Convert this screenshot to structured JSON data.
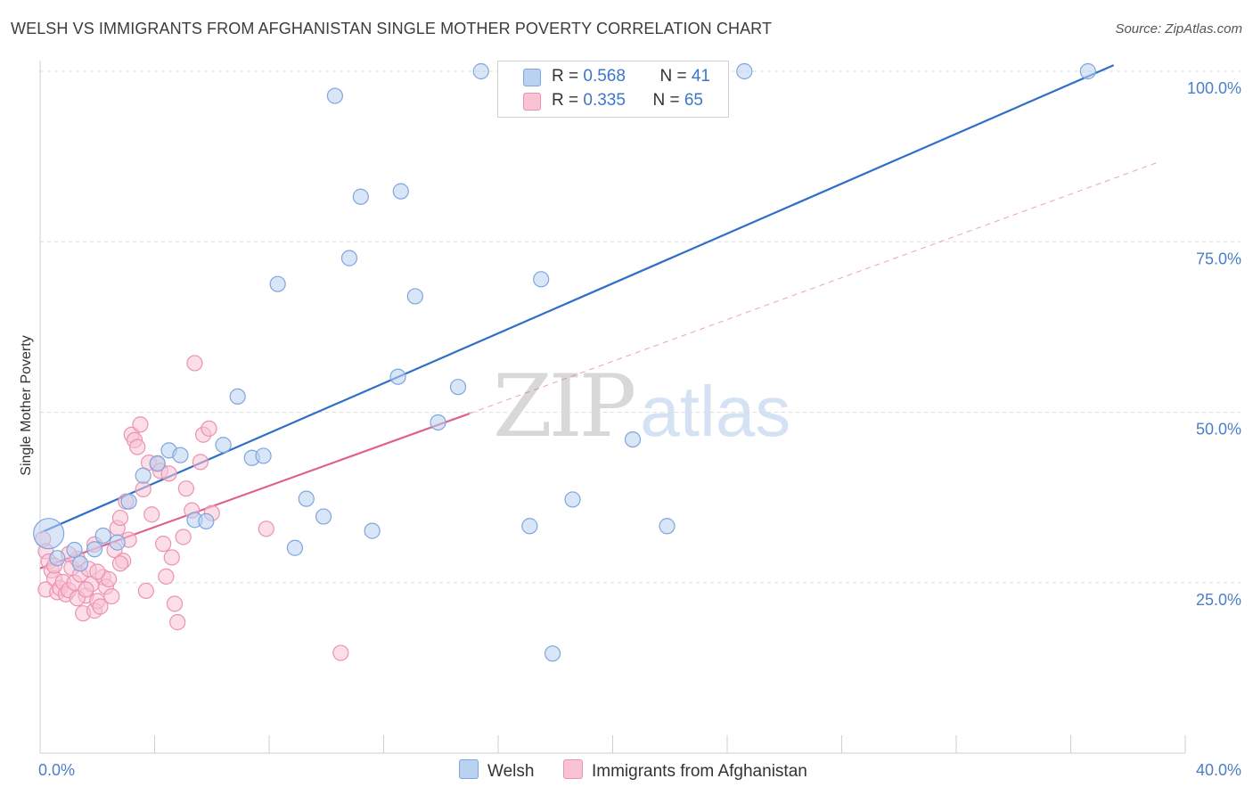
{
  "header": {
    "title": "WELSH VS IMMIGRANTS FROM AFGHANISTAN SINGLE MOTHER POVERTY CORRELATION CHART",
    "source": "Source: ZipAtlas.com"
  },
  "watermark": {
    "zip": "ZIP",
    "atlas": "atlas"
  },
  "legend_top": {
    "welsh": {
      "r_label": "R = ",
      "r_value": "0.568",
      "n_label": "N = ",
      "n_value": "41"
    },
    "afghan": {
      "r_label": "R = ",
      "r_value": "0.335",
      "n_label": "N = ",
      "n_value": "65"
    }
  },
  "legend_bottom": {
    "welsh": "Welsh",
    "afghan": "Immigrants from Afghanistan"
  },
  "colors": {
    "welsh_fill": "#b9d2f2",
    "welsh_stroke": "#7ea6dc",
    "welsh_line": "#2f6fc8",
    "afghan_fill": "#f8c3d4",
    "afghan_stroke": "#ec92b1",
    "afghan_line": "#e0608c",
    "tick_text": "#4a7fc9",
    "grid": "#dddddd"
  },
  "chart_data": {
    "type": "scatter",
    "title": "WELSH VS IMMIGRANTS FROM AFGHANISTAN SINGLE MOTHER POVERTY CORRELATION CHART",
    "xlabel": "",
    "ylabel": "Single Mother Poverty",
    "xlim": [
      0,
      40
    ],
    "ylim": [
      0,
      101
    ],
    "x_tick_labels": [
      {
        "value": 0,
        "label": "0.0%"
      },
      {
        "value": 40,
        "label": "40.0%"
      }
    ],
    "y_tick_labels": [
      {
        "value": 25,
        "label": "25.0%"
      },
      {
        "value": 50,
        "label": "50.0%"
      },
      {
        "value": 75,
        "label": "75.0%"
      },
      {
        "value": 100,
        "label": "100.0%"
      }
    ],
    "grid": true,
    "legend_placement": "top-center",
    "series": [
      {
        "name": "Welsh",
        "r": 0.568,
        "n": 41,
        "trend": {
          "x0": 0,
          "y0": 32.3,
          "x1": 37.5,
          "y1": 100.9,
          "dashed_to": null
        },
        "points": [
          {
            "x": 0.3,
            "y": 32.2,
            "big": true
          },
          {
            "x": 0.6,
            "y": 28.6
          },
          {
            "x": 1.2,
            "y": 29.8
          },
          {
            "x": 1.4,
            "y": 27.8
          },
          {
            "x": 1.9,
            "y": 29.9
          },
          {
            "x": 2.2,
            "y": 31.9
          },
          {
            "x": 2.7,
            "y": 30.9
          },
          {
            "x": 3.1,
            "y": 36.9
          },
          {
            "x": 3.6,
            "y": 40.7
          },
          {
            "x": 4.1,
            "y": 42.5
          },
          {
            "x": 4.5,
            "y": 44.4
          },
          {
            "x": 4.9,
            "y": 43.7
          },
          {
            "x": 5.4,
            "y": 34.2
          },
          {
            "x": 5.8,
            "y": 34.0
          },
          {
            "x": 6.4,
            "y": 45.2
          },
          {
            "x": 6.9,
            "y": 52.3
          },
          {
            "x": 7.4,
            "y": 43.3
          },
          {
            "x": 7.8,
            "y": 43.6
          },
          {
            "x": 8.3,
            "y": 68.8
          },
          {
            "x": 8.9,
            "y": 30.1
          },
          {
            "x": 9.3,
            "y": 37.3
          },
          {
            "x": 9.9,
            "y": 34.7
          },
          {
            "x": 10.3,
            "y": 96.4
          },
          {
            "x": 10.8,
            "y": 72.6
          },
          {
            "x": 11.2,
            "y": 81.6
          },
          {
            "x": 11.6,
            "y": 32.6
          },
          {
            "x": 12.5,
            "y": 55.2
          },
          {
            "x": 12.6,
            "y": 82.4
          },
          {
            "x": 13.1,
            "y": 67.0
          },
          {
            "x": 13.9,
            "y": 48.5
          },
          {
            "x": 14.6,
            "y": 53.7
          },
          {
            "x": 15.4,
            "y": 100.0
          },
          {
            "x": 17.1,
            "y": 33.3
          },
          {
            "x": 17.5,
            "y": 69.5
          },
          {
            "x": 17.9,
            "y": 14.6
          },
          {
            "x": 18.6,
            "y": 37.2
          },
          {
            "x": 19.8,
            "y": 100.0
          },
          {
            "x": 20.7,
            "y": 46.0
          },
          {
            "x": 21.9,
            "y": 33.3
          },
          {
            "x": 24.6,
            "y": 100.0
          },
          {
            "x": 36.6,
            "y": 100.0
          }
        ]
      },
      {
        "name": "Immigrants from Afghanistan",
        "r": 0.335,
        "n": 65,
        "trend": {
          "x0": 0,
          "y0": 27.1,
          "x1": 15.0,
          "y1": 49.8,
          "dashed_to": {
            "x": 40,
            "y": 87.7
          }
        },
        "points": [
          {
            "x": 0.1,
            "y": 31.4
          },
          {
            "x": 0.2,
            "y": 29.6
          },
          {
            "x": 0.3,
            "y": 28.1
          },
          {
            "x": 0.2,
            "y": 24.0
          },
          {
            "x": 0.4,
            "y": 26.8
          },
          {
            "x": 0.5,
            "y": 25.6
          },
          {
            "x": 0.6,
            "y": 23.6
          },
          {
            "x": 0.7,
            "y": 24.2
          },
          {
            "x": 0.8,
            "y": 25.1
          },
          {
            "x": 0.9,
            "y": 23.3
          },
          {
            "x": 1.0,
            "y": 23.9
          },
          {
            "x": 1.1,
            "y": 27.2
          },
          {
            "x": 1.2,
            "y": 25.0
          },
          {
            "x": 1.3,
            "y": 28.5
          },
          {
            "x": 1.4,
            "y": 26.2
          },
          {
            "x": 1.5,
            "y": 20.5
          },
          {
            "x": 1.6,
            "y": 23.1
          },
          {
            "x": 1.8,
            "y": 24.8
          },
          {
            "x": 1.7,
            "y": 27.0
          },
          {
            "x": 1.9,
            "y": 20.9
          },
          {
            "x": 2.0,
            "y": 22.3
          },
          {
            "x": 2.1,
            "y": 21.5
          },
          {
            "x": 2.2,
            "y": 25.8
          },
          {
            "x": 2.3,
            "y": 24.4
          },
          {
            "x": 1.9,
            "y": 30.6
          },
          {
            "x": 2.4,
            "y": 25.5
          },
          {
            "x": 2.5,
            "y": 23.0
          },
          {
            "x": 2.6,
            "y": 29.8
          },
          {
            "x": 2.7,
            "y": 33.0
          },
          {
            "x": 2.8,
            "y": 34.5
          },
          {
            "x": 2.9,
            "y": 28.2
          },
          {
            "x": 3.0,
            "y": 36.9
          },
          {
            "x": 3.1,
            "y": 31.3
          },
          {
            "x": 3.2,
            "y": 46.7
          },
          {
            "x": 3.3,
            "y": 45.9
          },
          {
            "x": 3.4,
            "y": 44.9
          },
          {
            "x": 3.5,
            "y": 48.2
          },
          {
            "x": 3.6,
            "y": 38.7
          },
          {
            "x": 3.7,
            "y": 23.8
          },
          {
            "x": 3.8,
            "y": 42.6
          },
          {
            "x": 3.9,
            "y": 35.0
          },
          {
            "x": 4.1,
            "y": 42.4
          },
          {
            "x": 4.2,
            "y": 41.4
          },
          {
            "x": 4.3,
            "y": 30.7
          },
          {
            "x": 4.4,
            "y": 25.9
          },
          {
            "x": 4.5,
            "y": 41.0
          },
          {
            "x": 4.6,
            "y": 28.7
          },
          {
            "x": 4.7,
            "y": 21.9
          },
          {
            "x": 4.8,
            "y": 19.2
          },
          {
            "x": 5.0,
            "y": 31.7
          },
          {
            "x": 5.1,
            "y": 38.8
          },
          {
            "x": 5.3,
            "y": 35.6
          },
          {
            "x": 5.4,
            "y": 57.2
          },
          {
            "x": 5.7,
            "y": 46.7
          },
          {
            "x": 5.9,
            "y": 47.6
          },
          {
            "x": 5.6,
            "y": 42.7
          },
          {
            "x": 6.0,
            "y": 35.2
          },
          {
            "x": 7.9,
            "y": 32.9
          },
          {
            "x": 10.5,
            "y": 14.7
          },
          {
            "x": 0.5,
            "y": 27.5
          },
          {
            "x": 1.0,
            "y": 29.2
          },
          {
            "x": 1.3,
            "y": 22.7
          },
          {
            "x": 2.0,
            "y": 26.6
          },
          {
            "x": 2.8,
            "y": 27.8
          },
          {
            "x": 1.6,
            "y": 24.0
          }
        ]
      }
    ]
  }
}
